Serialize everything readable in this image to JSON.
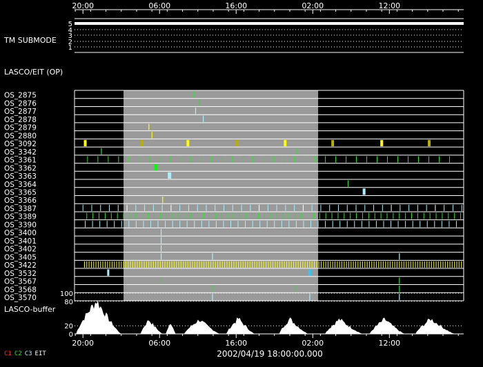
{
  "time_ticks": [
    "20:00",
    "06:00",
    "16:00",
    "02:00",
    "12:00"
  ],
  "date_label": "2002/04/19 18:00:00.000",
  "panels": {
    "submode": {
      "label": "TM SUBMODE",
      "levels": [
        "5",
        "4",
        "3",
        "2",
        "1"
      ],
      "value": 5
    },
    "lasco_eit": {
      "label": "LASCO/EIT (OP)"
    },
    "buffer": {
      "label": "LASCO-buffer",
      "ticks": [
        "100",
        "80",
        "20",
        "0"
      ]
    }
  },
  "legend": [
    {
      "label": "C1",
      "color": "#ff3030"
    },
    {
      "label": "C2",
      "color": "#30e030"
    },
    {
      "label": "C3",
      "color": "#a8f0ff"
    },
    {
      "label": "EIT",
      "color": "#ffffff"
    }
  ],
  "chart_data": {
    "type": "timeline",
    "x_axis": {
      "ticks": [
        "20:00",
        "06:00",
        "16:00",
        "02:00",
        "12:00"
      ],
      "range_hours": [
        -1.1,
        49.7
      ],
      "tick_hours": [
        0,
        10,
        20,
        30,
        40
      ]
    },
    "shaded_interval_hours": [
      5.3,
      30.7
    ],
    "rows": [
      {
        "name": "OS_2875",
        "events": [
          {
            "t": 14.4,
            "c": "C2"
          }
        ]
      },
      {
        "name": "OS_2876",
        "events": [
          {
            "t": 15.2,
            "c": "C2"
          }
        ]
      },
      {
        "name": "OS_2877",
        "events": [
          {
            "t": 14.7,
            "c": "C3"
          }
        ]
      },
      {
        "name": "OS_2878",
        "events": [
          {
            "t": 15.7,
            "c": "C3"
          }
        ]
      },
      {
        "name": "OS_2879",
        "events": [
          {
            "t": 8.6,
            "c": "Y"
          }
        ]
      },
      {
        "name": "OS_2880",
        "events": [
          {
            "t": 9.0,
            "c": "Y"
          }
        ]
      },
      {
        "name": "OS_3092",
        "events": [
          {
            "t": 0.3,
            "c": "Y",
            "w": 4
          },
          {
            "t": 7.7,
            "c": "O",
            "w": 4
          },
          {
            "t": 13.7,
            "c": "Y",
            "w": 4
          },
          {
            "t": 20.1,
            "c": "O",
            "w": 4
          },
          {
            "t": 26.4,
            "c": "Y",
            "w": 4
          },
          {
            "t": 32.6,
            "c": "O",
            "w": 4
          },
          {
            "t": 39.0,
            "c": "Y",
            "w": 4
          },
          {
            "t": 45.2,
            "c": "O",
            "w": 4
          }
        ]
      },
      {
        "name": "OS_3342",
        "events": [
          {
            "t": 2.4,
            "c": "C2"
          },
          {
            "t": 27.9,
            "c": "C2"
          }
        ]
      },
      {
        "name": "OS_3361",
        "pattern": {
          "start": 0.6,
          "end": 49.2,
          "step": 1.35,
          "c": "C2"
        }
      },
      {
        "name": "OS_3362",
        "events": [
          {
            "t": 9.5,
            "c": "C2b",
            "w": 5
          }
        ]
      },
      {
        "name": "OS_3363",
        "events": [
          {
            "t": 11.3,
            "c": "C3",
            "w": 5
          }
        ]
      },
      {
        "name": "OS_3364",
        "events": [
          {
            "t": 34.6,
            "c": "C2"
          }
        ]
      },
      {
        "name": "OS_3365",
        "events": [
          {
            "t": 36.7,
            "c": "C3",
            "w": 4
          }
        ]
      },
      {
        "name": "OS_3366",
        "events": [
          {
            "t": 10.4,
            "c": "Y"
          }
        ]
      },
      {
        "name": "OS_3387",
        "pattern": {
          "start": 0.0,
          "end": 49.5,
          "step": 1.15,
          "c": "MIX"
        }
      },
      {
        "name": "OS_3389",
        "pattern": {
          "start": 0.5,
          "end": 49.5,
          "step": 0.8,
          "c": "C2"
        }
      },
      {
        "name": "OS_3390",
        "pattern": {
          "start": 0.3,
          "end": 49.5,
          "step": 0.95,
          "c": "C3"
        }
      },
      {
        "name": "OS_3400",
        "events": [
          {
            "t": 10.2,
            "c": "C3"
          }
        ]
      },
      {
        "name": "OS_3401",
        "events": [
          {
            "t": 10.2,
            "c": "C3"
          }
        ]
      },
      {
        "name": "OS_3402",
        "events": [
          {
            "t": 10.2,
            "c": "C3"
          }
        ]
      },
      {
        "name": "OS_3405",
        "events": [
          {
            "t": 10.2,
            "c": "C3"
          },
          {
            "t": 16.9,
            "c": "C3"
          },
          {
            "t": 41.3,
            "c": "C3"
          }
        ]
      },
      {
        "name": "OS_3422",
        "pattern": {
          "start": 0.2,
          "end": 49.4,
          "step": 0.3,
          "c": "Y"
        }
      },
      {
        "name": "OS_3532",
        "events": [
          {
            "t": 3.3,
            "c": "C3",
            "w": 3
          },
          {
            "t": 29.6,
            "c": "C3b",
            "w": 4
          }
        ]
      },
      {
        "name": "OS_3567",
        "events": [
          {
            "t": 10.2,
            "c": "C2"
          },
          {
            "t": 41.3,
            "c": "C2"
          }
        ]
      },
      {
        "name": "OS_3568",
        "events": [
          {
            "t": 16.9,
            "c": "C2"
          },
          {
            "t": 27.7,
            "c": "C2"
          },
          {
            "t": 41.3,
            "c": "C2"
          }
        ]
      },
      {
        "name": "OS_3570",
        "events": [
          {
            "t": 16.9,
            "c": "C3"
          },
          {
            "t": 29.6,
            "c": "C3"
          },
          {
            "t": 41.3,
            "c": "C3"
          }
        ]
      }
    ],
    "buffer_series": {
      "name": "LASCO-buffer",
      "ylim": [
        0,
        100
      ],
      "segments": [
        {
          "start": -0.9,
          "end": 5.0,
          "peak": 82,
          "peak_at": 1.8
        },
        {
          "start": 7.5,
          "end": 10.4,
          "peak": 35,
          "peak_at": 8.6
        },
        {
          "start": 10.8,
          "end": 12.1,
          "peak": 30,
          "peak_at": 11.5
        },
        {
          "start": 13.2,
          "end": 17.9,
          "peak": 35,
          "peak_at": 15.2
        },
        {
          "start": 18.7,
          "end": 22.4,
          "peak": 38,
          "peak_at": 20.3
        },
        {
          "start": 25.6,
          "end": 29.4,
          "peak": 37,
          "peak_at": 27.0
        },
        {
          "start": 31.6,
          "end": 36.5,
          "peak": 36,
          "peak_at": 33.5
        },
        {
          "start": 37.4,
          "end": 42.0,
          "peak": 36,
          "peak_at": 39.4
        },
        {
          "start": 43.4,
          "end": 48.5,
          "peak": 37,
          "peak_at": 45.4
        }
      ]
    }
  }
}
